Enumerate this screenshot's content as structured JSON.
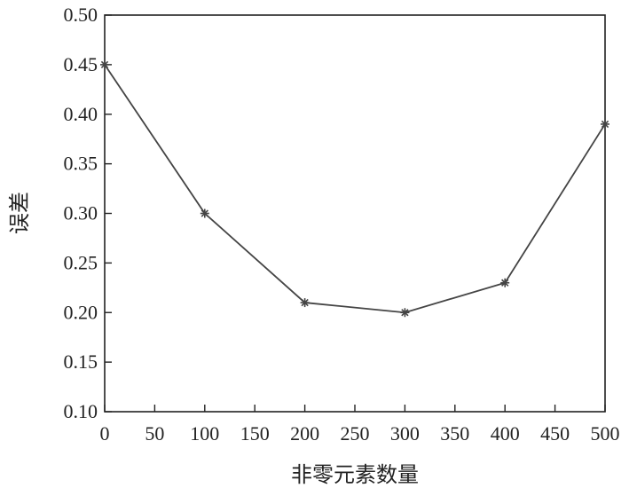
{
  "chart_data": {
    "type": "line",
    "title": "",
    "xlabel": "非零元素数量",
    "ylabel": "误差",
    "xlim": [
      0,
      500
    ],
    "ylim": [
      0.1,
      0.5
    ],
    "xticks": [
      "0",
      "50",
      "100",
      "150",
      "200",
      "250",
      "300",
      "350",
      "400",
      "450",
      "500"
    ],
    "yticks": [
      "0.10",
      "0.15",
      "0.20",
      "0.25",
      "0.30",
      "0.35",
      "0.40",
      "0.45",
      "0.50"
    ],
    "grid": false,
    "legend": "none",
    "series": [
      {
        "x": [
          0,
          100,
          200,
          300,
          400,
          500
        ],
        "y": [
          0.45,
          0.3,
          0.21,
          0.2,
          0.23,
          0.39
        ],
        "marker": "asterisk",
        "color": "#444444"
      }
    ]
  }
}
